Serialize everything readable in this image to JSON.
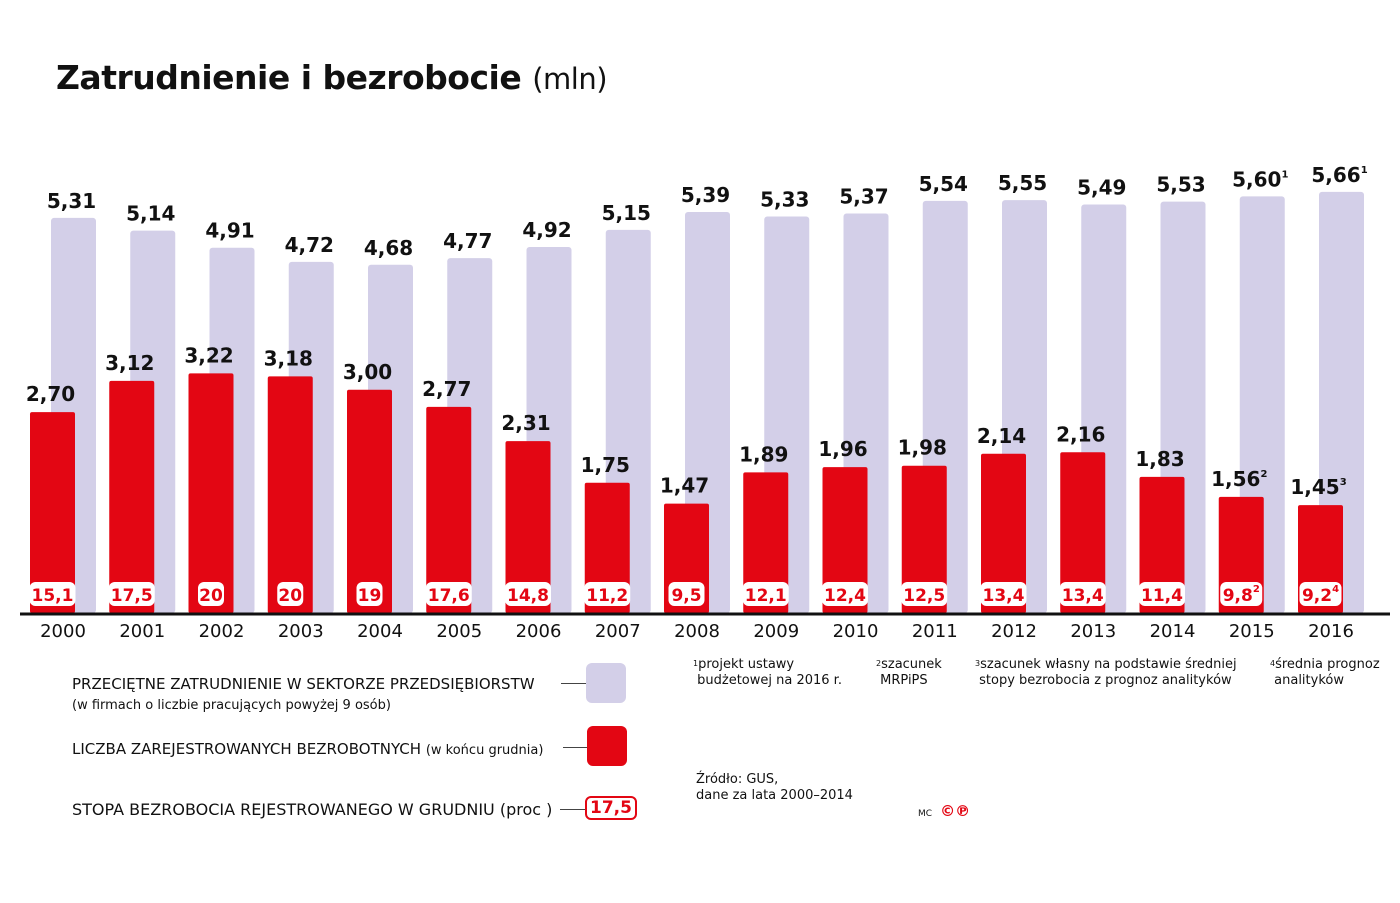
{
  "title": "Zatrudnienie i bezrobocie",
  "title_unit": "(mln)",
  "chart_data": {
    "type": "bar",
    "title": "Zatrudnienie i bezrobocie (mln)",
    "categories": [
      "2000",
      "2001",
      "2002",
      "2003",
      "2004",
      "2005",
      "2006",
      "2007",
      "2008",
      "2009",
      "2010",
      "2011",
      "2012",
      "2013",
      "2014",
      "2015",
      "2016"
    ],
    "series": [
      {
        "name": "PRZECIĘTNE ZATRUDNIENIE W SEKTORZE PRZEDSIĘBIORSTW",
        "color": "#d3cfe8",
        "values": [
          5.31,
          5.14,
          4.91,
          4.72,
          4.68,
          4.77,
          4.92,
          5.15,
          5.39,
          5.33,
          5.37,
          5.54,
          5.55,
          5.49,
          5.53,
          5.6,
          5.66
        ],
        "labels": [
          "5,31",
          "5,14",
          "4,91",
          "4,72",
          "4,68",
          "4,77",
          "4,92",
          "5,15",
          "5,39",
          "5,33",
          "5,37",
          "5,54",
          "5,55",
          "5,49",
          "5,53",
          "5,60",
          "5,66"
        ],
        "notes": [
          "",
          "",
          "",
          "",
          "",
          "",
          "",
          "",
          "",
          "",
          "",
          "",
          "",
          "",
          "",
          "1",
          "1"
        ]
      },
      {
        "name": "LICZBA ZAREJESTROWANYCH BEZROBOTNYCH",
        "color": "#e30613",
        "values": [
          2.7,
          3.12,
          3.22,
          3.18,
          3.0,
          2.77,
          2.31,
          1.75,
          1.47,
          1.89,
          1.96,
          1.98,
          2.14,
          2.16,
          1.83,
          1.56,
          1.45
        ],
        "labels": [
          "2,70",
          "3,12",
          "3,22",
          "3,18",
          "3,00",
          "2,77",
          "2,31",
          "1,75",
          "1,47",
          "1,89",
          "1,96",
          "1,98",
          "2,14",
          "2,16",
          "1,83",
          "1,56",
          "1,45"
        ],
        "notes": [
          "",
          "",
          "",
          "",
          "",
          "",
          "",
          "",
          "",
          "",
          "",
          "",
          "",
          "",
          "",
          "2",
          "3"
        ]
      },
      {
        "name": "STOPA BEZROBOCIA REJESTROWANEGO W GRUDNIU (proc)",
        "values": [
          15.1,
          17.5,
          20,
          20,
          19,
          17.6,
          14.8,
          11.2,
          9.5,
          12.1,
          12.4,
          12.5,
          13.4,
          13.4,
          11.4,
          9.8,
          9.2
        ],
        "labels": [
          "15,1",
          "17,5",
          "20",
          "20",
          "19",
          "17,6",
          "14,8",
          "11,2",
          "9,5",
          "12,1",
          "12,4",
          "12,5",
          "13,4",
          "13,4",
          "11,4",
          "9,8",
          "9,2"
        ],
        "notes": [
          "",
          "",
          "",
          "",
          "",
          "",
          "",
          "",
          "",
          "",
          "",
          "",
          "",
          "",
          "",
          "2",
          "4"
        ]
      }
    ],
    "ylim": [
      0,
      6
    ],
    "grid": false,
    "legend": "bottom-left"
  },
  "legend": {
    "employment": "PRZECIĘTNE  ZATRUDNIENIE  W SEKTORZE PRZEDSIĘBIORSTW",
    "employment_sub": "(w firmach o liczbie  pracujących  powyżej 9 osób)",
    "unemployed": "LICZBA  ZAREJESTROWANYCH BEZROBOTNYCH",
    "unemployed_sub": "(w końcu grudnia)",
    "rate": "STOPA BEZROBOCIA  REJESTROWANEGO  W GRUDNIU (proc )",
    "rate_example": "17,5"
  },
  "footnotes": [
    {
      "mark": "1",
      "line1": "projekt ustawy",
      "line2": "budżetowej na 2016 r."
    },
    {
      "mark": "2",
      "line1": "szacunek",
      "line2": "MRPiPS"
    },
    {
      "mark": "3",
      "line1": "szacunek własny na podstawie średniej",
      "line2": "stopy bezrobocia z prognoz analityków"
    },
    {
      "mark": "4",
      "line1": "średnia prognoz",
      "line2": "analityków"
    }
  ],
  "source": {
    "line1": "Źródło: GUS,",
    "line2": "dane za lata 2000–2014"
  },
  "credit": {
    "initials": "MC",
    "marks": "©℗"
  }
}
